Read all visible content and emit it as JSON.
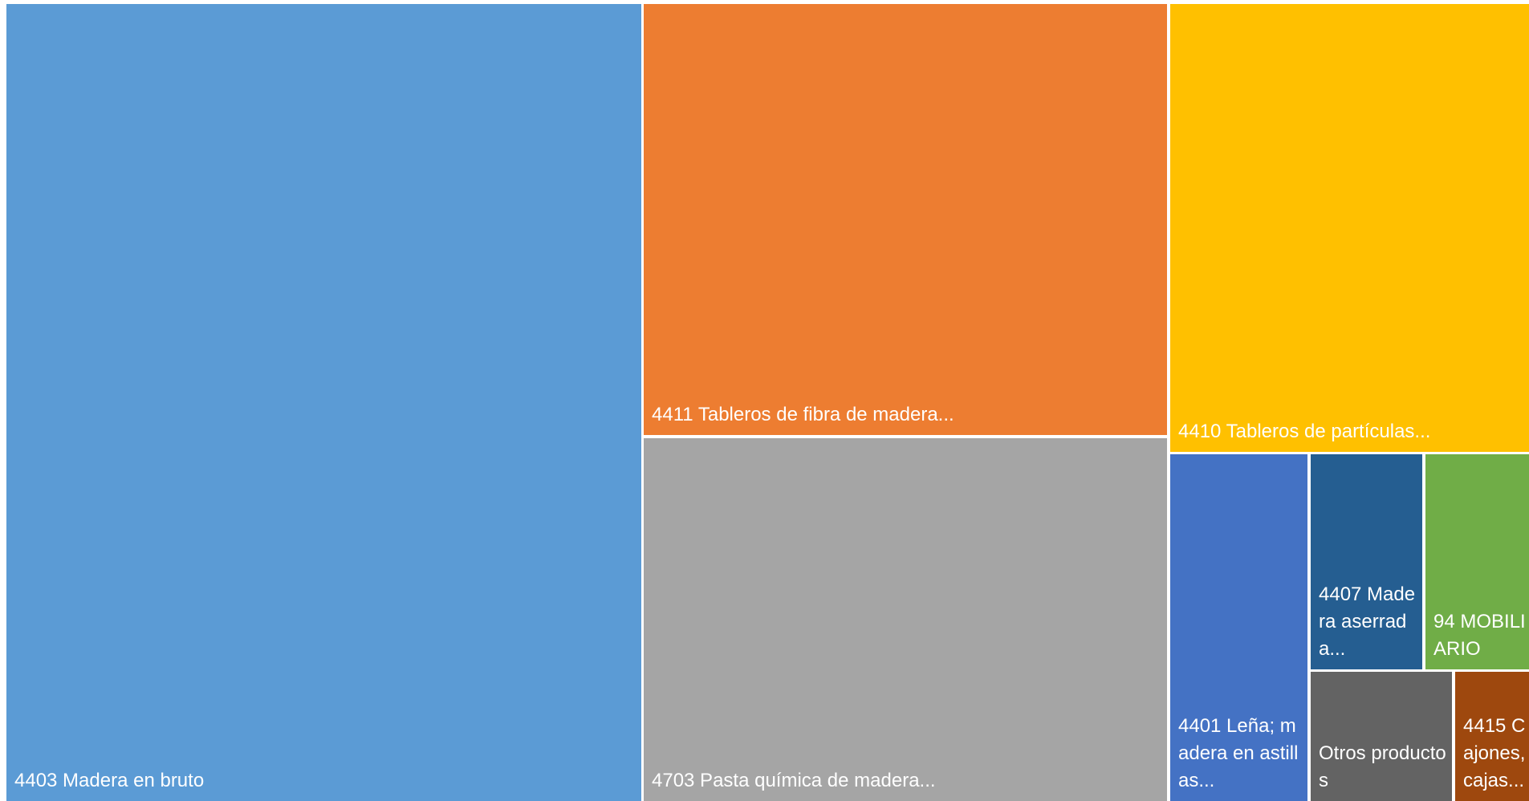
{
  "chart_data": {
    "type": "treemap",
    "items": [
      {
        "id": "t4403",
        "label": "4403 Madera en bruto",
        "color": "#5B9BD5"
      },
      {
        "id": "t4411",
        "label": "4411 Tableros de fibra de madera...",
        "color": "#ED7D31"
      },
      {
        "id": "t4703",
        "label": "4703 Pasta química de madera...",
        "color": "#A5A5A5"
      },
      {
        "id": "t4410",
        "label": "4410 Tableros de partículas...",
        "color": "#FFC000"
      },
      {
        "id": "t4401",
        "label": "4401 Leña; madera en astillas...",
        "color": "#4472C4"
      },
      {
        "id": "t4407",
        "label": "4407 Madera aserrada...",
        "color": "#255E91"
      },
      {
        "id": "t94",
        "label": "94 MOBILIARIO",
        "color": "#70AD47"
      },
      {
        "id": "totros",
        "label": "Otros productos",
        "color": "#636363"
      },
      {
        "id": "t4415",
        "label": "4415 Cajones, cajas...",
        "color": "#9E480E"
      }
    ]
  }
}
